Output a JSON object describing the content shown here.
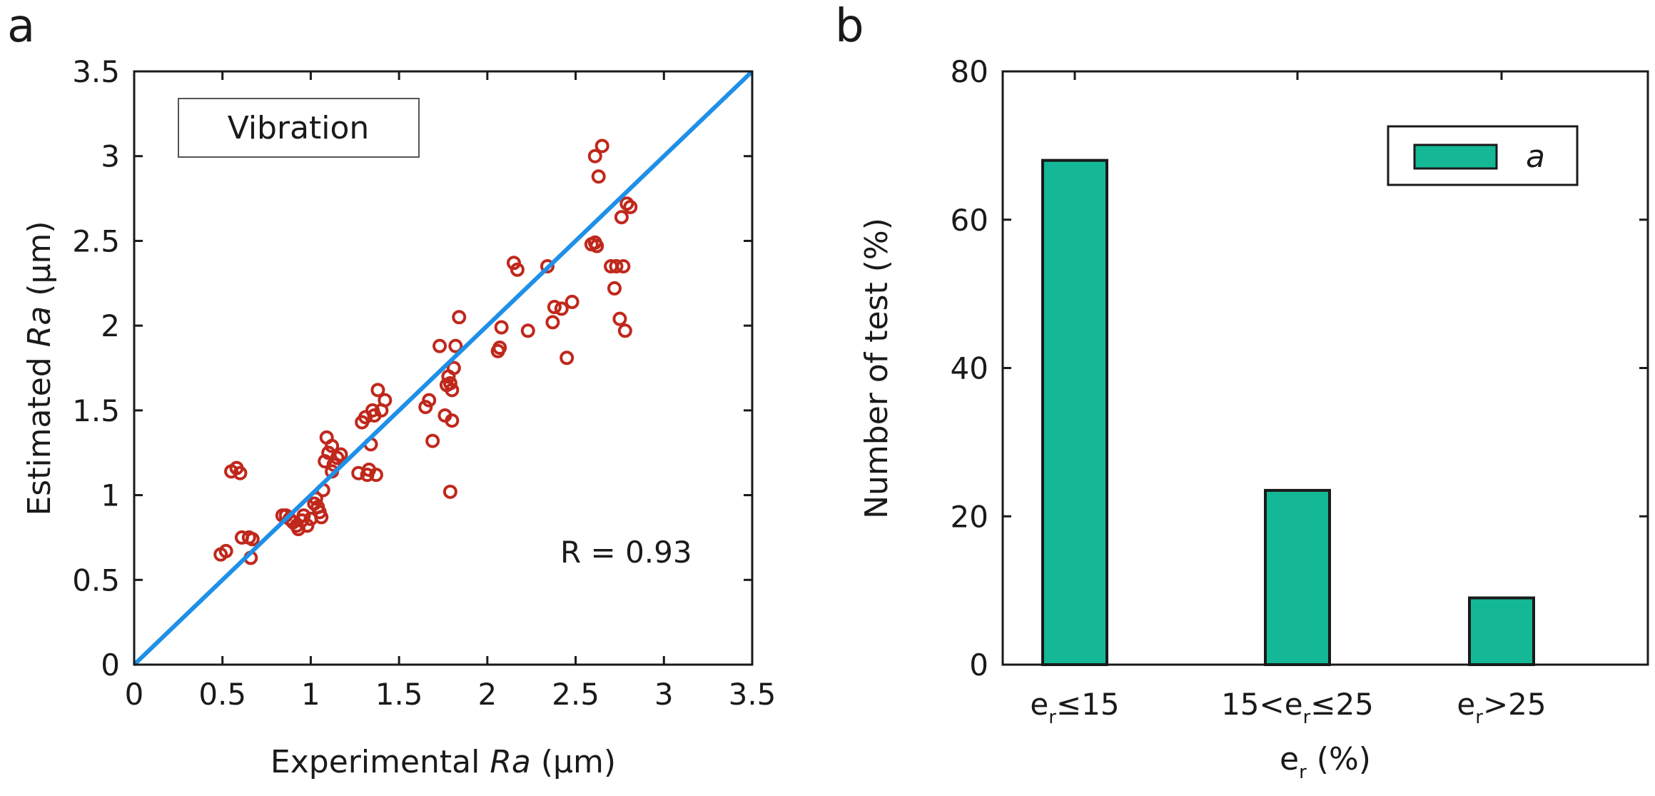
{
  "chart_data": [
    {
      "panel": "a",
      "type": "scatter",
      "xlabel": "Experimental Ra (µm)",
      "xlabel_parts": [
        "Experimental ",
        "Ra",
        " (µm)"
      ],
      "ylabel": "Estimated Ra  (µm)",
      "ylabel_parts": [
        "Estimated ",
        "Ra",
        "  (µm)"
      ],
      "xlim": [
        0,
        3.5
      ],
      "ylim": [
        0,
        3.5
      ],
      "xticks": [
        0,
        0.5,
        1,
        1.5,
        2,
        2.5,
        3,
        3.5
      ],
      "yticks": [
        0,
        0.5,
        1,
        1.5,
        2,
        2.5,
        3,
        3.5
      ],
      "xtick_labels": [
        "0",
        "0.5",
        "1",
        "1.5",
        "2",
        "2.5",
        "3",
        "3.5"
      ],
      "ytick_labels": [
        "0",
        "0.5",
        "1",
        "1.5",
        "2",
        "2.5",
        "3",
        "3.5"
      ],
      "legend": "Vibration",
      "annotation": "R = 0.93",
      "reference_line": {
        "x": [
          0,
          3.5
        ],
        "y": [
          0,
          3.5
        ],
        "color": "#1e90e8"
      },
      "marker_color": "#c0281c",
      "points": [
        [
          0.49,
          0.65
        ],
        [
          0.52,
          0.67
        ],
        [
          0.55,
          1.14
        ],
        [
          0.58,
          1.16
        ],
        [
          0.6,
          1.13
        ],
        [
          0.61,
          0.75
        ],
        [
          0.65,
          0.75
        ],
        [
          0.67,
          0.74
        ],
        [
          0.66,
          0.63
        ],
        [
          0.84,
          0.88
        ],
        [
          0.86,
          0.88
        ],
        [
          0.88,
          0.86
        ],
        [
          0.9,
          0.84
        ],
        [
          0.92,
          0.82
        ],
        [
          0.93,
          0.8
        ],
        [
          0.95,
          0.85
        ],
        [
          0.96,
          0.88
        ],
        [
          0.98,
          0.82
        ],
        [
          1.0,
          0.86
        ],
        [
          1.02,
          0.95
        ],
        [
          1.03,
          0.98
        ],
        [
          1.04,
          0.93
        ],
        [
          1.05,
          0.9
        ],
        [
          1.06,
          0.87
        ],
        [
          1.07,
          1.03
        ],
        [
          1.08,
          1.2
        ],
        [
          1.1,
          1.25
        ],
        [
          1.09,
          1.34
        ],
        [
          1.12,
          1.29
        ],
        [
          1.13,
          1.18
        ],
        [
          1.15,
          1.22
        ],
        [
          1.17,
          1.24
        ],
        [
          1.12,
          1.14
        ],
        [
          1.27,
          1.13
        ],
        [
          1.29,
          1.43
        ],
        [
          1.31,
          1.46
        ],
        [
          1.32,
          1.12
        ],
        [
          1.33,
          1.15
        ],
        [
          1.34,
          1.3
        ],
        [
          1.35,
          1.5
        ],
        [
          1.36,
          1.47
        ],
        [
          1.37,
          1.12
        ],
        [
          1.38,
          1.62
        ],
        [
          1.4,
          1.5
        ],
        [
          1.42,
          1.56
        ],
        [
          1.65,
          1.52
        ],
        [
          1.67,
          1.56
        ],
        [
          1.69,
          1.32
        ],
        [
          1.73,
          1.88
        ],
        [
          1.76,
          1.47
        ],
        [
          1.77,
          1.65
        ],
        [
          1.78,
          1.7
        ],
        [
          1.79,
          1.66
        ],
        [
          1.8,
          1.62
        ],
        [
          1.81,
          1.75
        ],
        [
          1.79,
          1.02
        ],
        [
          1.8,
          1.44
        ],
        [
          1.82,
          1.88
        ],
        [
          1.84,
          2.05
        ],
        [
          2.06,
          1.85
        ],
        [
          2.07,
          1.87
        ],
        [
          2.08,
          1.99
        ],
        [
          2.15,
          2.37
        ],
        [
          2.17,
          2.33
        ],
        [
          2.23,
          1.97
        ],
        [
          2.34,
          2.35
        ],
        [
          2.37,
          2.02
        ],
        [
          2.38,
          2.11
        ],
        [
          2.42,
          2.1
        ],
        [
          2.45,
          1.81
        ],
        [
          2.48,
          2.14
        ],
        [
          2.59,
          2.48
        ],
        [
          2.61,
          2.49
        ],
        [
          2.62,
          2.47
        ],
        [
          2.61,
          3.0
        ],
        [
          2.63,
          2.88
        ],
        [
          2.65,
          3.06
        ],
        [
          2.7,
          2.35
        ],
        [
          2.72,
          2.22
        ],
        [
          2.73,
          2.35
        ],
        [
          2.75,
          2.04
        ],
        [
          2.76,
          2.64
        ],
        [
          2.77,
          2.35
        ],
        [
          2.78,
          1.97
        ],
        [
          2.79,
          2.72
        ],
        [
          2.81,
          2.7
        ]
      ]
    },
    {
      "panel": "b",
      "type": "bar",
      "categories": [
        "e_r≤15",
        "15<e_r≤25",
        "e_r>25"
      ],
      "category_parts": [
        [
          "e",
          "r",
          "≤15"
        ],
        [
          "15<e",
          "r",
          "≤25"
        ],
        [
          "e",
          "r",
          ">25"
        ]
      ],
      "values": [
        68,
        23.5,
        9
      ],
      "ylim": [
        0,
        80
      ],
      "yticks": [
        0,
        20,
        40,
        60,
        80
      ],
      "ytick_labels": [
        "0",
        "20",
        "40",
        "60",
        "80"
      ],
      "ylabel": "Number of test (%)",
      "xlabel": "e_r (%)",
      "xlabel_parts": [
        "e",
        "r",
        " (%)"
      ],
      "legend": "a",
      "bar_color": "#14b896"
    }
  ]
}
